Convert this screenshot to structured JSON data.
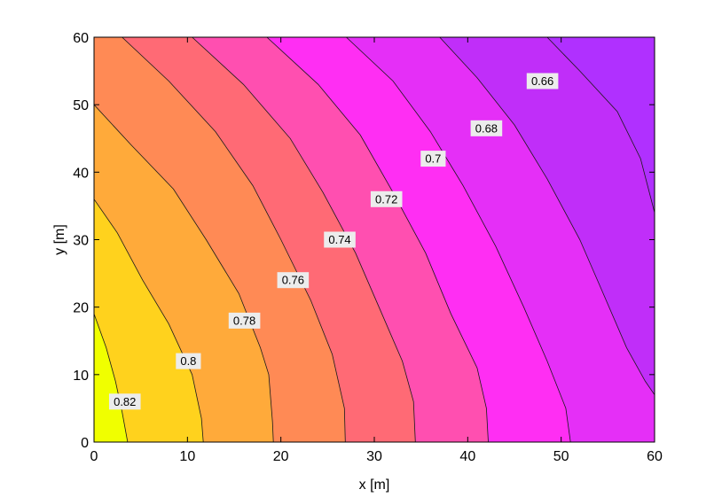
{
  "chart_data": {
    "type": "contour",
    "xlabel": "x [m]",
    "ylabel": "y [m]",
    "xlim": [
      0,
      60
    ],
    "ylim": [
      0,
      60
    ],
    "xticks": [
      0,
      10,
      20,
      30,
      40,
      50,
      60
    ],
    "yticks": [
      0,
      10,
      20,
      30,
      40,
      50,
      60
    ],
    "grid": false,
    "colormap": "spring (yellow to magenta to purple)",
    "colors": [
      "#f0ff00",
      "#ffd21d",
      "#ffaa3a",
      "#ff8a55",
      "#ff6a75",
      "#ff4fb0",
      "#ff2ef3",
      "#e52ff7",
      "#c02ef9",
      "#b030ff"
    ],
    "levels": [
      0.66,
      0.68,
      0.7,
      0.72,
      0.74,
      0.76,
      0.78,
      0.8,
      0.82
    ],
    "contours": [
      {
        "level": 0.82,
        "label": "0.82",
        "points": [
          [
            0,
            19
          ],
          [
            1.3,
            14
          ],
          [
            2.3,
            9
          ],
          [
            3.0,
            4.5
          ],
          [
            3.6,
            0
          ]
        ]
      },
      {
        "level": 0.8,
        "label": "0.8",
        "points": [
          [
            0,
            36
          ],
          [
            2.5,
            31
          ],
          [
            5.2,
            24
          ],
          [
            8,
            17.5
          ],
          [
            10.5,
            10
          ],
          [
            11.5,
            3.5
          ],
          [
            11.7,
            0
          ]
        ]
      },
      {
        "level": 0.78,
        "label": "0.78",
        "points": [
          [
            0,
            50
          ],
          [
            4,
            44
          ],
          [
            8.5,
            37.5
          ],
          [
            12,
            30
          ],
          [
            15.5,
            22
          ],
          [
            17.8,
            14
          ],
          [
            18.7,
            10
          ],
          [
            19.1,
            3
          ],
          [
            19.2,
            0
          ]
        ]
      },
      {
        "level": 0.76,
        "label": "0.76",
        "points": [
          [
            3,
            60
          ],
          [
            8,
            53.5
          ],
          [
            13,
            46
          ],
          [
            17,
            38
          ],
          [
            20,
            30
          ],
          [
            23.2,
            21
          ],
          [
            25.5,
            13
          ],
          [
            26.8,
            5
          ],
          [
            26.9,
            0
          ]
        ]
      },
      {
        "level": 0.74,
        "label": "0.74",
        "points": [
          [
            10.5,
            60
          ],
          [
            16,
            53
          ],
          [
            21,
            45
          ],
          [
            24.5,
            37
          ],
          [
            28,
            28
          ],
          [
            30.5,
            20
          ],
          [
            33,
            12
          ],
          [
            34.2,
            6
          ],
          [
            34.4,
            0
          ]
        ]
      },
      {
        "level": 0.72,
        "label": "0.72",
        "points": [
          [
            18.5,
            60
          ],
          [
            24,
            53
          ],
          [
            28.5,
            45.5
          ],
          [
            32,
            37
          ],
          [
            35.5,
            28
          ],
          [
            38.2,
            19
          ],
          [
            41,
            11
          ],
          [
            42,
            5
          ],
          [
            42.2,
            0
          ]
        ]
      },
      {
        "level": 0.7,
        "label": "0.7",
        "points": [
          [
            27,
            60
          ],
          [
            32,
            53.5
          ],
          [
            36,
            46
          ],
          [
            39.5,
            38
          ],
          [
            43,
            29
          ],
          [
            46,
            20
          ],
          [
            48.5,
            12
          ],
          [
            50.5,
            5
          ],
          [
            51,
            0
          ]
        ]
      },
      {
        "level": 0.68,
        "label": "0.68",
        "points": [
          [
            37,
            60
          ],
          [
            41,
            54
          ],
          [
            45,
            47
          ],
          [
            48.5,
            39
          ],
          [
            52,
            30
          ],
          [
            54.5,
            22
          ],
          [
            57,
            14
          ],
          [
            59,
            9
          ],
          [
            60,
            7
          ]
        ]
      },
      {
        "level": 0.66,
        "label": "0.66",
        "points": [
          [
            48.5,
            60
          ],
          [
            52,
            55
          ],
          [
            56,
            49
          ],
          [
            58.5,
            42
          ],
          [
            60,
            34
          ]
        ]
      }
    ],
    "contour_labels": [
      {
        "text": "0.82",
        "x": 3.3,
        "y": 6
      },
      {
        "text": "0.8",
        "x": 10.1,
        "y": 12
      },
      {
        "text": "0.78",
        "x": 16.1,
        "y": 18
      },
      {
        "text": "0.76",
        "x": 21.3,
        "y": 24
      },
      {
        "text": "0.74",
        "x": 26.3,
        "y": 30
      },
      {
        "text": "0.72",
        "x": 31.3,
        "y": 36
      },
      {
        "text": "0.7",
        "x": 36.3,
        "y": 42
      },
      {
        "text": "0.68",
        "x": 42.0,
        "y": 46.5
      },
      {
        "text": "0.66",
        "x": 48.0,
        "y": 53.5
      }
    ]
  }
}
